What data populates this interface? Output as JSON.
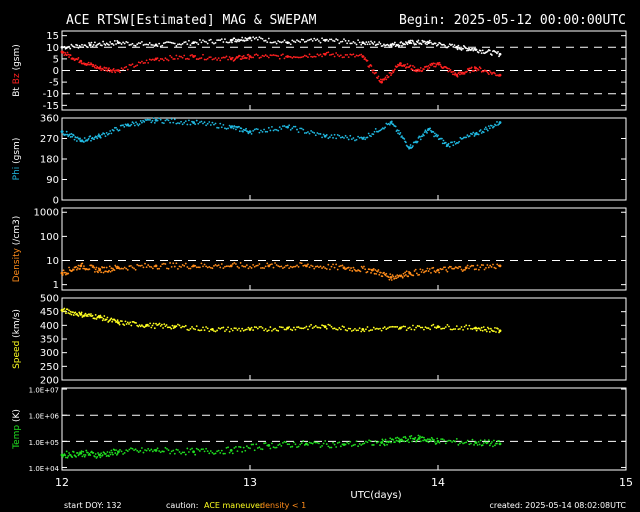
{
  "header": {
    "title": "ACE RTSW[Estimated] MAG & SWEPAM",
    "begin": "Begin: 2025-05-12 00:00:00UTC"
  },
  "footer": {
    "start_doy": "start DOY: 132",
    "caution_label": "caution:",
    "caution_maneuver": "ACE maneuver",
    "caution_density": "density < 1",
    "created": "created: 2025-05-14 08:02:08UTC"
  },
  "colors": {
    "background": "#000000",
    "axes": "#ffffff",
    "bt": "#ffffff",
    "bz": "#ff2020",
    "phi": "#20b8e0",
    "density": "#ff8c1a",
    "speed": "#ffff20",
    "temp": "#20e020",
    "caution_maneuver": "#ffff20",
    "caution_density": "#ff8c1a"
  },
  "chart_data": [
    {
      "type": "scatter",
      "panel": "mag",
      "ylabel_parts": [
        "Bt",
        "Bz",
        "(gsm)"
      ],
      "yticks": [
        15,
        10,
        5,
        0,
        -5,
        -10,
        -15
      ],
      "ylim": [
        -17,
        17
      ],
      "dashed_lines": [
        10,
        0,
        -10
      ],
      "xlim": [
        12,
        15
      ],
      "series": [
        {
          "name": "Bt",
          "x": [
            12.0,
            12.15,
            12.3,
            12.5,
            12.7,
            12.9,
            13.0,
            13.2,
            13.4,
            13.6,
            13.75,
            13.85,
            13.95,
            14.1,
            14.2,
            14.33
          ],
          "values": [
            10,
            11,
            12,
            11,
            12,
            13,
            14,
            12,
            13,
            12,
            11,
            12,
            12,
            10,
            9,
            7
          ]
        },
        {
          "name": "Bz",
          "x": [
            12.0,
            12.1,
            12.2,
            12.3,
            12.5,
            12.7,
            12.9,
            13.0,
            13.2,
            13.4,
            13.6,
            13.7,
            13.8,
            13.9,
            14.0,
            14.1,
            14.2,
            14.33
          ],
          "values": [
            8,
            4,
            1,
            0,
            5,
            6,
            5,
            6,
            6,
            7,
            6,
            -5,
            3,
            0,
            3,
            -2,
            1,
            -2
          ]
        }
      ]
    },
    {
      "type": "scatter",
      "panel": "phi",
      "ylabel_parts": [
        "Phi",
        "(gsm)"
      ],
      "yticks": [
        360,
        270,
        180,
        90,
        0
      ],
      "ylim": [
        0,
        360
      ],
      "xlim": [
        12,
        15
      ],
      "series": [
        {
          "name": "Phi",
          "x": [
            12.0,
            12.1,
            12.2,
            12.35,
            12.5,
            12.7,
            12.9,
            13.0,
            13.2,
            13.4,
            13.6,
            13.75,
            13.85,
            13.95,
            14.05,
            14.2,
            14.33
          ],
          "values": [
            300,
            260,
            280,
            330,
            350,
            340,
            320,
            300,
            320,
            280,
            270,
            340,
            230,
            310,
            240,
            290,
            340
          ]
        }
      ]
    },
    {
      "type": "scatter",
      "panel": "density",
      "ylabel_parts": [
        "Density",
        "(/cm3)"
      ],
      "yticks": [
        1000,
        100,
        10,
        1
      ],
      "ytick_labels": [
        "1000",
        "100",
        "10",
        "1"
      ],
      "scale": "log",
      "ylim": [
        0.6,
        1500
      ],
      "dashed_lines": [
        10
      ],
      "xlim": [
        12,
        15
      ],
      "series": [
        {
          "name": "Density",
          "x": [
            12.0,
            12.1,
            12.2,
            12.3,
            12.5,
            12.7,
            12.9,
            13.1,
            13.3,
            13.5,
            13.65,
            13.75,
            13.85,
            14.0,
            14.15,
            14.33
          ],
          "values": [
            3,
            6,
            4,
            5,
            6,
            6,
            6,
            6,
            6,
            5,
            4,
            2,
            3,
            4,
            5,
            6
          ]
        }
      ]
    },
    {
      "type": "scatter",
      "panel": "speed",
      "ylabel_parts": [
        "Speed",
        "(km/s)"
      ],
      "yticks": [
        500,
        450,
        400,
        350,
        300,
        250,
        200
      ],
      "ylim": [
        200,
        500
      ],
      "xlim": [
        12,
        15
      ],
      "series": [
        {
          "name": "Speed",
          "x": [
            12.0,
            12.1,
            12.2,
            12.3,
            12.45,
            12.6,
            12.8,
            13.0,
            13.2,
            13.4,
            13.6,
            13.8,
            14.0,
            14.2,
            14.33
          ],
          "values": [
            455,
            440,
            430,
            410,
            400,
            395,
            385,
            385,
            390,
            395,
            385,
            390,
            395,
            390,
            380
          ]
        }
      ]
    },
    {
      "type": "scatter",
      "panel": "temp",
      "ylabel_parts": [
        "Temp",
        "(K)"
      ],
      "yticks": [
        10000000,
        1000000,
        100000,
        10000
      ],
      "ytick_labels": [
        "1.0E+07",
        "1.0E+06",
        "1.0E+05",
        "1.0E+04"
      ],
      "scale": "log",
      "ylim": [
        8000,
        11000000
      ],
      "dashed_lines": [
        1000000,
        100000
      ],
      "xlim": [
        12,
        15
      ],
      "xticks": [
        12,
        13,
        14,
        15
      ],
      "xtick_labels": [
        "12",
        "13",
        "14",
        "15"
      ],
      "xlabel": "UTC(days)",
      "series": [
        {
          "name": "Temp",
          "x": [
            12.0,
            12.1,
            12.2,
            12.3,
            12.5,
            12.7,
            12.9,
            13.1,
            13.3,
            13.5,
            13.7,
            13.8,
            13.9,
            14.0,
            14.2,
            14.33
          ],
          "values": [
            30000,
            35000,
            30000,
            40000,
            45000,
            40000,
            45000,
            70000,
            80000,
            75000,
            90000,
            110000,
            130000,
            100000,
            90000,
            80000
          ]
        }
      ]
    }
  ]
}
